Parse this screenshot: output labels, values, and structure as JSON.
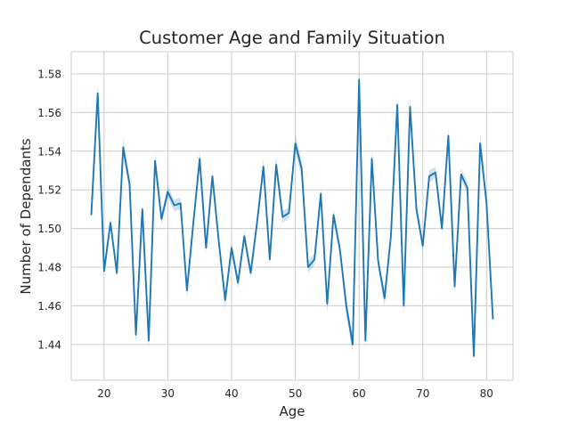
{
  "chart_data": {
    "type": "line",
    "title": "Customer Age and Family Situation",
    "xlabel": "Age",
    "ylabel": "Number of Dependants",
    "xlim": [
      14.85,
      84.15
    ],
    "ylim": [
      1.4215,
      1.5915
    ],
    "x_ticks": [
      20,
      30,
      40,
      50,
      60,
      70,
      80
    ],
    "y_ticks": [
      1.44,
      1.46,
      1.48,
      1.5,
      1.52,
      1.54,
      1.56,
      1.58
    ],
    "x_tick_labels": [
      "20",
      "30",
      "40",
      "50",
      "60",
      "70",
      "80"
    ],
    "y_tick_labels": [
      "1.44",
      "1.46",
      "1.48",
      "1.50",
      "1.52",
      "1.54",
      "1.56",
      "1.58"
    ],
    "grid": true,
    "confidence_band": true,
    "colors": {
      "line": "#1f77b4",
      "band": "#1f77b4",
      "grid": "#cccccc",
      "spine": "#cccccc"
    },
    "series": [
      {
        "x": [
          18,
          19,
          20,
          21,
          22,
          23,
          24,
          25,
          26,
          27,
          28,
          29,
          30,
          31,
          32,
          33,
          34,
          35,
          36,
          37,
          38,
          39,
          40,
          41,
          42,
          43,
          44,
          45,
          46,
          47,
          48,
          49,
          50,
          51,
          52,
          53,
          54,
          55,
          56,
          57,
          58,
          59,
          60,
          61,
          62,
          63,
          64,
          65,
          66,
          67,
          68,
          69,
          70,
          71,
          72,
          73,
          74,
          75,
          76,
          77,
          78,
          79,
          80,
          81
        ],
        "y": [
          1.507,
          1.57,
          1.478,
          1.503,
          1.477,
          1.542,
          1.523,
          1.445,
          1.51,
          1.442,
          1.535,
          1.505,
          1.519,
          1.512,
          1.513,
          1.468,
          1.503,
          1.536,
          1.49,
          1.527,
          1.493,
          1.463,
          1.49,
          1.472,
          1.496,
          1.477,
          1.503,
          1.532,
          1.484,
          1.533,
          1.506,
          1.508,
          1.544,
          1.531,
          1.48,
          1.484,
          1.518,
          1.461,
          1.507,
          1.489,
          1.46,
          1.44,
          1.577,
          1.442,
          1.536,
          1.483,
          1.464,
          1.496,
          1.564,
          1.46,
          1.563,
          1.51,
          1.491,
          1.527,
          1.529,
          1.5,
          1.548,
          1.47,
          1.528,
          1.521,
          1.434,
          1.544,
          1.513,
          1.453
        ]
      }
    ]
  }
}
